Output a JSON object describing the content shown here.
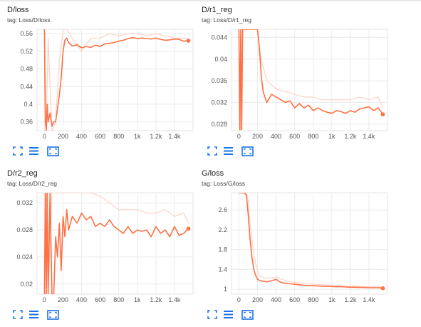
{
  "accent_color": "#ff7043",
  "smoothed_color": "#ff7043",
  "raw_color": "#fbd3c6",
  "icons": {
    "expand": "fit-screen-icon",
    "data": "data-table-icon",
    "zoom": "zoom-fit-icon"
  },
  "cards": [
    {
      "title": "D/loss",
      "tag": "tag: Loss/D/loss",
      "chart_data": {
        "type": "line",
        "xlabel": "",
        "ylabel": "",
        "xlim": [
          -80,
          1600
        ],
        "ylim": [
          0.34,
          0.57
        ],
        "xticks": [
          0,
          200,
          400,
          600,
          800,
          1000,
          1200,
          1400
        ],
        "xtick_labels": [
          "0",
          "200",
          "400",
          "600",
          "800",
          "1k",
          "1.2k",
          "1.4k"
        ],
        "yticks": [
          0.36,
          0.4,
          0.44,
          0.48,
          0.52,
          0.56
        ],
        "ytick_labels": [
          "0.36",
          "0.4",
          "0.44",
          "0.48",
          "0.52",
          "0.56"
        ],
        "grid": true,
        "series": [
          {
            "role": "smoothed",
            "x": [
              0,
              10,
              20,
              30,
              40,
              60,
              80,
              100,
              120,
              140,
              160,
              180,
              200,
              220,
              240,
              260,
              300,
              350,
              400,
              450,
              500,
              550,
              600,
              650,
              700,
              750,
              800,
              850,
              900,
              950,
              1000,
              1050,
              1100,
              1150,
              1200,
              1250,
              1300,
              1350,
              1400,
              1450,
              1500,
              1550
            ],
            "y": [
              0.57,
              0.36,
              0.34,
              0.4,
              0.36,
              0.38,
              0.35,
              0.36,
              0.36,
              0.39,
              0.42,
              0.46,
              0.52,
              0.545,
              0.55,
              0.54,
              0.532,
              0.535,
              0.528,
              0.531,
              0.529,
              0.534,
              0.531,
              0.537,
              0.538,
              0.54,
              0.543,
              0.545,
              0.549,
              0.551,
              0.549,
              0.55,
              0.549,
              0.548,
              0.55,
              0.547,
              0.545,
              0.546,
              0.548,
              0.547,
              0.543,
              0.544
            ]
          },
          {
            "role": "raw",
            "x": [
              0,
              20,
              40,
              80,
              120,
              160,
              200,
              240,
              300,
              400,
              500,
              600,
              700,
              800,
              900,
              1000,
              1100,
              1200,
              1300,
              1400,
              1500,
              1550
            ],
            "y": [
              0.57,
              0.34,
              0.55,
              0.34,
              0.36,
              0.5,
              0.57,
              0.57,
              0.55,
              0.52,
              0.55,
              0.55,
              0.56,
              0.555,
              0.56,
              0.56,
              0.555,
              0.56,
              0.555,
              0.55,
              0.55,
              0.548
            ]
          }
        ]
      }
    },
    {
      "title": "D/r1_reg",
      "tag": "tag: Loss/D/r1_reg",
      "chart_data": {
        "type": "line",
        "xlabel": "",
        "ylabel": "",
        "xlim": [
          -80,
          1600
        ],
        "ylim": [
          0.0268,
          0.0455
        ],
        "xticks": [
          0,
          200,
          400,
          600,
          800,
          1000,
          1200,
          1400
        ],
        "xtick_labels": [
          "0",
          "200",
          "400",
          "600",
          "800",
          "1k",
          "1.2k",
          "1.4k"
        ],
        "yticks": [
          0.028,
          0.032,
          0.036,
          0.04,
          0.044
        ],
        "ytick_labels": [
          "0.028",
          "0.032",
          "0.036",
          "0.04",
          "0.044"
        ],
        "grid": true,
        "series": [
          {
            "role": "smoothed",
            "x": [
              0,
              10,
              20,
              30,
              40,
              60,
              80,
              100,
              120,
              140,
              160,
              180,
              200,
              220,
              240,
              260,
              300,
              350,
              400,
              450,
              500,
              550,
              600,
              650,
              700,
              750,
              800,
              850,
              900,
              950,
              1000,
              1050,
              1100,
              1150,
              1200,
              1250,
              1300,
              1350,
              1400,
              1450,
              1500,
              1550
            ],
            "y": [
              0.0455,
              0.027,
              0.0455,
              0.027,
              0.0455,
              0.0455,
              0.0455,
              0.0455,
              0.0455,
              0.0455,
              0.0455,
              0.0455,
              0.0455,
              0.042,
              0.037,
              0.034,
              0.032,
              0.0335,
              0.033,
              0.0325,
              0.032,
              0.0323,
              0.031,
              0.0318,
              0.031,
              0.0315,
              0.0305,
              0.031,
              0.0305,
              0.0302,
              0.03,
              0.0305,
              0.0303,
              0.03,
              0.0305,
              0.0302,
              0.0308,
              0.031,
              0.0312,
              0.0305,
              0.031,
              0.0298
            ]
          },
          {
            "role": "raw",
            "x": [
              0,
              20,
              40,
              80,
              120,
              160,
              200,
              240,
              300,
              400,
              500,
              600,
              700,
              800,
              900,
              1000,
              1100,
              1200,
              1300,
              1400,
              1500,
              1550
            ],
            "y": [
              0.0455,
              0.027,
              0.0455,
              0.0455,
              0.0455,
              0.0455,
              0.0455,
              0.04,
              0.036,
              0.0345,
              0.034,
              0.0335,
              0.033,
              0.033,
              0.0325,
              0.0325,
              0.0325,
              0.0325,
              0.033,
              0.0325,
              0.033,
              0.031
            ]
          }
        ]
      }
    },
    {
      "title": "D/r2_reg",
      "tag": "tag: Loss/D/r2_reg",
      "chart_data": {
        "type": "line",
        "xlabel": "",
        "ylabel": "",
        "xlim": [
          -80,
          1600
        ],
        "ylim": [
          0.0185,
          0.0335
        ],
        "xticks": [
          0,
          200,
          400,
          600,
          800,
          1000,
          1200,
          1400
        ],
        "xtick_labels": [
          "0",
          "200",
          "400",
          "600",
          "800",
          "1k",
          "1.2k",
          "1.4k"
        ],
        "yticks": [
          0.02,
          0.024,
          0.028,
          0.032
        ],
        "ytick_labels": [
          "0.02",
          "0.024",
          "0.028",
          "0.032"
        ],
        "grid": true,
        "series": [
          {
            "role": "smoothed",
            "x": [
              0,
              10,
              20,
              30,
              40,
              60,
              80,
              100,
              120,
              140,
              160,
              180,
              200,
              220,
              240,
              260,
              300,
              350,
              400,
              450,
              500,
              550,
              600,
              650,
              700,
              750,
              800,
              850,
              900,
              950,
              1000,
              1050,
              1100,
              1150,
              1200,
              1250,
              1300,
              1350,
              1400,
              1450,
              1500,
              1550
            ],
            "y": [
              0.0185,
              0.0335,
              0.0185,
              0.0335,
              0.0185,
              0.0335,
              0.0185,
              0.0185,
              0.027,
              0.024,
              0.029,
              0.022,
              0.03,
              0.027,
              0.031,
              0.028,
              0.03,
              0.029,
              0.0305,
              0.0295,
              0.03,
              0.0285,
              0.029,
              0.0285,
              0.0295,
              0.0285,
              0.028,
              0.0275,
              0.0285,
              0.0275,
              0.028,
              0.0278,
              0.028,
              0.027,
              0.0285,
              0.0275,
              0.028,
              0.027,
              0.0285,
              0.0272,
              0.0275,
              0.0282
            ]
          },
          {
            "role": "raw",
            "x": [
              0,
              20,
              40,
              80,
              120,
              160,
              200,
              240,
              300,
              400,
              500,
              600,
              700,
              800,
              900,
              1000,
              1100,
              1200,
              1300,
              1400,
              1500,
              1550
            ],
            "y": [
              0.0185,
              0.0335,
              0.0185,
              0.0335,
              0.0335,
              0.0335,
              0.0335,
              0.0335,
              0.0335,
              0.0335,
              0.0335,
              0.033,
              0.032,
              0.031,
              0.031,
              0.031,
              0.0305,
              0.0305,
              0.031,
              0.03,
              0.0305,
              0.029
            ]
          }
        ]
      }
    },
    {
      "title": "G/loss",
      "tag": "tag: Loss/G/loss",
      "chart_data": {
        "type": "line",
        "xlabel": "",
        "ylabel": "",
        "xlim": [
          -80,
          1600
        ],
        "ylim": [
          0.9,
          2.95
        ],
        "xticks": [
          0,
          200,
          400,
          600,
          800,
          1000,
          1200,
          1400
        ],
        "xtick_labels": [
          "0",
          "200",
          "400",
          "600",
          "800",
          "1k",
          "1.2k",
          "1.4k"
        ],
        "yticks": [
          1,
          1.4,
          1.8,
          2.2,
          2.6
        ],
        "ytick_labels": [
          "1",
          "1.4",
          "1.8",
          "2.2",
          "2.6"
        ],
        "grid": true,
        "series": [
          {
            "role": "smoothed",
            "x": [
              0,
              20,
              40,
              60,
              80,
              100,
              120,
              140,
              160,
              180,
              200,
              220,
              240,
              260,
              300,
              350,
              400,
              450,
              500,
              550,
              600,
              650,
              700,
              750,
              800,
              850,
              900,
              950,
              1000,
              1050,
              1100,
              1150,
              1200,
              1250,
              1300,
              1350,
              1400,
              1450,
              1500,
              1550
            ],
            "y": [
              2.95,
              2.95,
              2.95,
              2.95,
              2.9,
              2.5,
              2.0,
              1.65,
              1.4,
              1.28,
              1.2,
              1.18,
              1.17,
              1.16,
              1.15,
              1.17,
              1.2,
              1.14,
              1.12,
              1.11,
              1.1,
              1.09,
              1.08,
              1.075,
              1.07,
              1.065,
              1.06,
              1.06,
              1.055,
              1.05,
              1.05,
              1.045,
              1.04,
              1.04,
              1.035,
              1.035,
              1.03,
              1.03,
              1.03,
              1.02
            ]
          },
          {
            "role": "raw",
            "x": [
              0,
              40,
              80,
              100,
              120,
              140,
              160,
              200,
              240,
              300,
              400,
              500,
              600,
              700,
              800,
              900,
              1000,
              1100,
              1200,
              1300,
              1400,
              1500,
              1550
            ],
            "y": [
              2.95,
              2.95,
              2.95,
              2.8,
              2.3,
              2.0,
              1.7,
              1.35,
              1.25,
              1.22,
              1.25,
              1.17,
              1.14,
              1.12,
              1.1,
              1.09,
              1.08,
              1.07,
              1.06,
              1.06,
              1.05,
              1.05,
              1.03
            ]
          }
        ]
      }
    }
  ]
}
